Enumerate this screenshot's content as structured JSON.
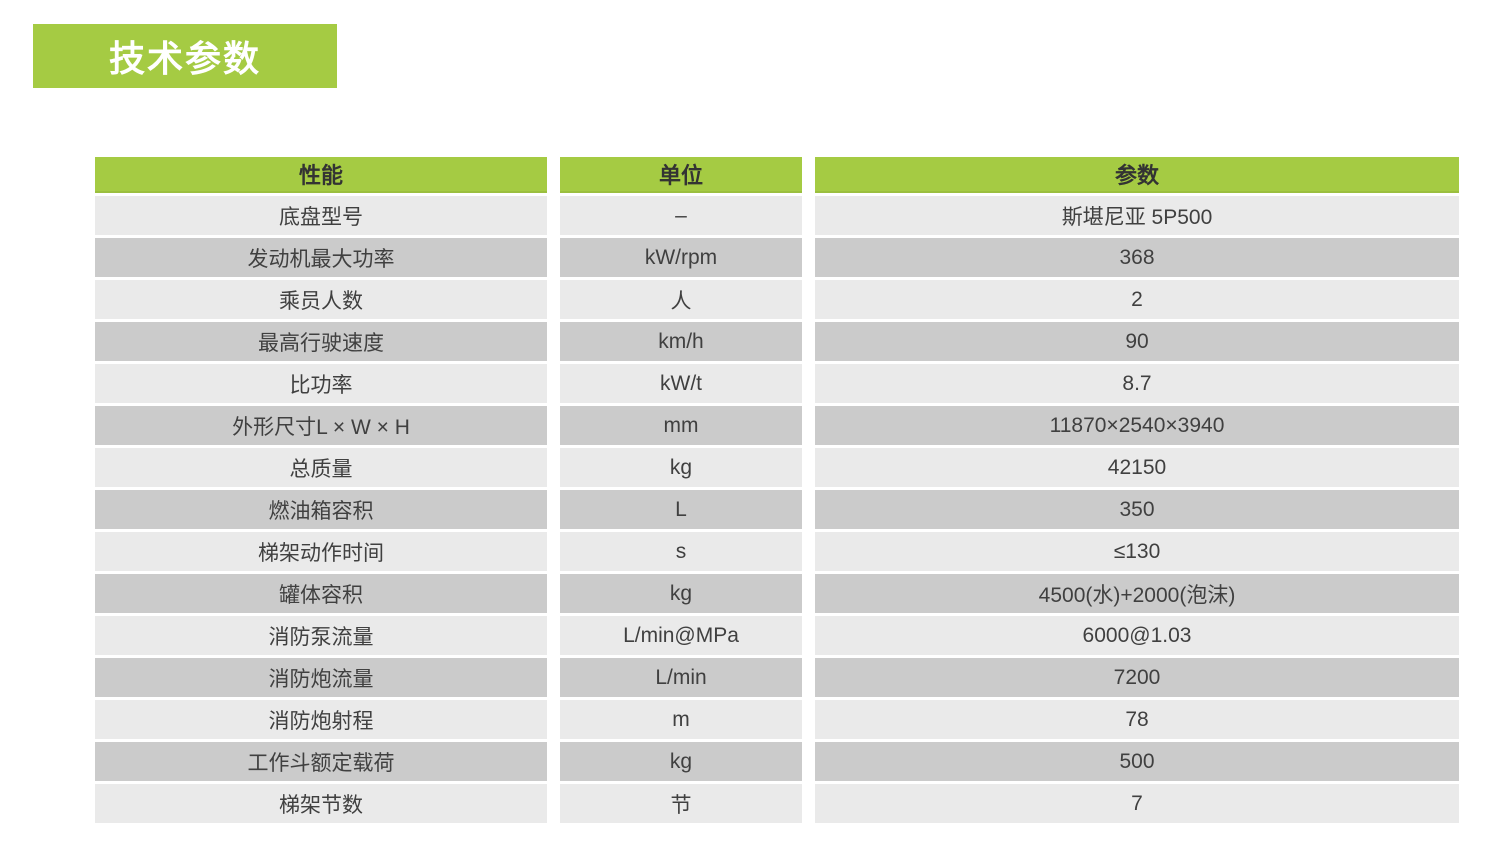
{
  "title_badge": {
    "label": "技术参数"
  },
  "table": {
    "columns": [
      {
        "key": "name",
        "label": "性能"
      },
      {
        "key": "unit",
        "label": "单位"
      },
      {
        "key": "value",
        "label": "参数"
      }
    ],
    "rows": [
      {
        "name": "底盘型号",
        "unit": "–",
        "value": "斯堪尼亚 5P500"
      },
      {
        "name": "发动机最大功率",
        "unit": "kW/rpm",
        "value": "368"
      },
      {
        "name": "乘员人数",
        "unit": "人",
        "value": "2"
      },
      {
        "name": "最高行驶速度",
        "unit": "km/h",
        "value": "90"
      },
      {
        "name": "比功率",
        "unit": "kW/t",
        "value": "8.7"
      },
      {
        "name": "外形尺寸L × W × H",
        "unit": "mm",
        "value": "11870×2540×3940"
      },
      {
        "name": "总质量",
        "unit": "kg",
        "value": "42150"
      },
      {
        "name": "燃油箱容积",
        "unit": "L",
        "value": "350"
      },
      {
        "name": "梯架动作时间",
        "unit": "s",
        "value": "≤130"
      },
      {
        "name": "罐体容积",
        "unit": "kg",
        "value": "4500(水)+2000(泡沫)"
      },
      {
        "name": "消防泵流量",
        "unit": "L/min@MPa",
        "value": "6000@1.03"
      },
      {
        "name": "消防炮流量",
        "unit": "L/min",
        "value": "7200"
      },
      {
        "name": "消防炮射程",
        "unit": "m",
        "value": "78"
      },
      {
        "name": "工作斗额定载荷",
        "unit": "kg",
        "value": "500"
      },
      {
        "name": "梯架节数",
        "unit": "节",
        "value": "7"
      }
    ],
    "colors": {
      "header_bg": "#A5CB43",
      "header_text": "#333333",
      "row_light": "#EAEAEA",
      "row_dark": "#CBCBCB",
      "cell_text": "#404040",
      "badge_bg": "#A5CB43",
      "badge_text": "#ffffff"
    }
  }
}
